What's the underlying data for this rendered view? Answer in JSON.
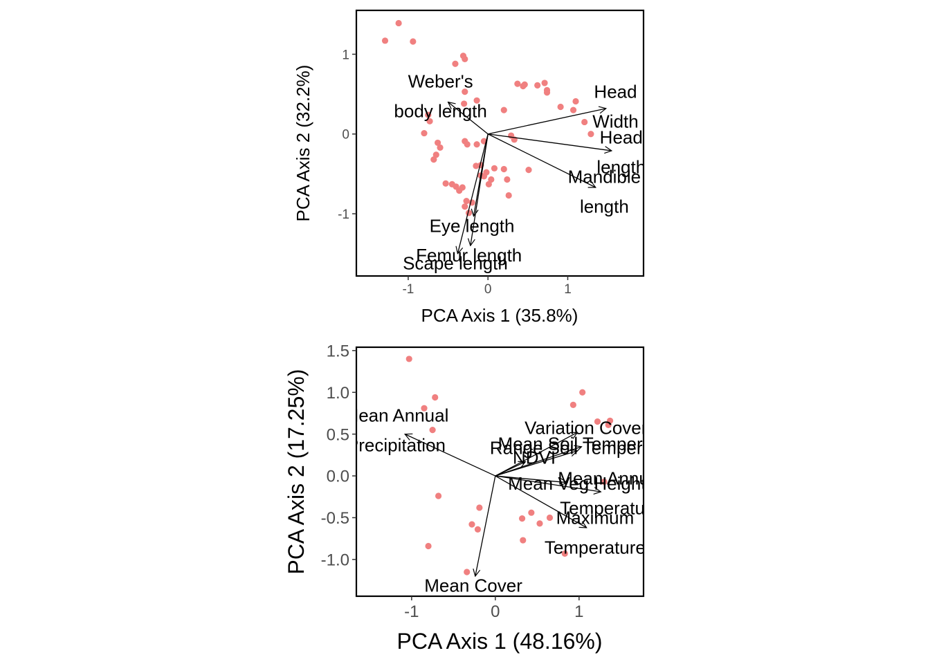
{
  "colors": {
    "point": "#F08080",
    "arrow": "#000000",
    "frame": "#000000",
    "tick_label": "#4D4D4D",
    "background": "#FFFFFF"
  },
  "chart_data": [
    {
      "type": "scatter",
      "subtype": "pca-biplot",
      "title": "",
      "xlabel": "PCA Axis 1 (35.8%)",
      "ylabel": "PCA Axis 2 (32.2%)",
      "xlim": [
        -1.65,
        1.95
      ],
      "ylim": [
        -1.78,
        1.55
      ],
      "xticks": [
        -1,
        0,
        1
      ],
      "yticks": [
        -1,
        0,
        1
      ],
      "xtick_labels": [
        "-1",
        "0",
        "1"
      ],
      "ytick_labels": [
        "-1",
        "0",
        "1"
      ],
      "grid": false,
      "legend": "none",
      "points": [
        [
          -1.12,
          1.39
        ],
        [
          -1.29,
          1.17
        ],
        [
          -0.94,
          1.16
        ],
        [
          -0.31,
          0.98
        ],
        [
          -0.29,
          0.94
        ],
        [
          -0.41,
          0.88
        ],
        [
          0.37,
          0.63
        ],
        [
          0.44,
          0.6
        ],
        [
          0.46,
          0.62
        ],
        [
          0.71,
          0.64
        ],
        [
          0.62,
          0.61
        ],
        [
          0.74,
          0.55
        ],
        [
          0.74,
          0.52
        ],
        [
          1.1,
          0.41
        ],
        [
          0.91,
          0.34
        ],
        [
          1.07,
          0.3
        ],
        [
          1.21,
          0.15
        ],
        [
          1.29,
          0.0
        ],
        [
          -0.29,
          0.53
        ],
        [
          -0.14,
          0.42
        ],
        [
          -0.3,
          0.38
        ],
        [
          0.2,
          0.3
        ],
        [
          -0.75,
          0.24
        ],
        [
          -0.73,
          0.16
        ],
        [
          -0.8,
          0.01
        ],
        [
          -0.63,
          -0.11
        ],
        [
          -0.6,
          -0.17
        ],
        [
          -0.29,
          -0.09
        ],
        [
          -0.26,
          -0.13
        ],
        [
          -0.14,
          -0.13
        ],
        [
          -0.05,
          -0.09
        ],
        [
          -0.65,
          -0.26
        ],
        [
          -0.68,
          -0.32
        ],
        [
          0.29,
          -0.02
        ],
        [
          0.33,
          -0.07
        ],
        [
          0.51,
          -0.45
        ],
        [
          -0.15,
          -0.4
        ],
        [
          -0.09,
          -0.39
        ],
        [
          0.08,
          -0.43
        ],
        [
          0.2,
          -0.44
        ],
        [
          -0.09,
          -0.52
        ],
        [
          -0.02,
          -0.48
        ],
        [
          -0.05,
          -0.53
        ],
        [
          0.04,
          -0.57
        ],
        [
          0.01,
          -0.63
        ],
        [
          0.24,
          -0.57
        ],
        [
          -0.53,
          -0.62
        ],
        [
          -0.45,
          -0.63
        ],
        [
          -0.4,
          -0.66
        ],
        [
          -0.36,
          -0.71
        ],
        [
          -0.32,
          -0.67
        ],
        [
          0.26,
          -0.77
        ],
        [
          -0.27,
          -0.84
        ],
        [
          -0.29,
          -0.91
        ],
        [
          -0.2,
          -0.86
        ],
        [
          -0.24,
          -0.99
        ]
      ],
      "arrows": [
        {
          "x": -0.5,
          "y": 0.4,
          "label": "Weber's\nbody length"
        },
        {
          "x": 1.48,
          "y": 0.32,
          "label": "Head\nWidth"
        },
        {
          "x": 1.55,
          "y": -0.21,
          "label": "Head\nlength"
        },
        {
          "x": 1.35,
          "y": -0.67,
          "label": "Mandible\nlength"
        },
        {
          "x": -0.18,
          "y": -1.03,
          "label": "Eye length"
        },
        {
          "x": -0.22,
          "y": -1.4,
          "label": "Femur length"
        },
        {
          "x": -0.38,
          "y": -1.5,
          "label": "Scape length"
        }
      ]
    },
    {
      "type": "scatter",
      "subtype": "pca-biplot",
      "title": "",
      "xlabel": "PCA Axis 1 (48.16%)",
      "ylabel": "PCA Axis 2 (17.25%)",
      "xlim": [
        -1.66,
        1.77
      ],
      "ylim": [
        -1.44,
        1.54
      ],
      "xticks": [
        -1,
        0,
        1
      ],
      "yticks": [
        -1.0,
        -0.5,
        0.0,
        0.5,
        1.0,
        1.5
      ],
      "xtick_labels": [
        "-1",
        "0",
        "1"
      ],
      "ytick_labels": [
        "-1.0",
        "-0.5",
        "0.0",
        "0.5",
        "1.0",
        "1.5"
      ],
      "grid": false,
      "legend": "none",
      "points": [
        [
          -1.03,
          1.4
        ],
        [
          -0.72,
          0.94
        ],
        [
          -0.85,
          0.81
        ],
        [
          -0.75,
          0.55
        ],
        [
          1.04,
          1.0
        ],
        [
          0.93,
          0.85
        ],
        [
          1.37,
          0.66
        ],
        [
          1.22,
          0.65
        ],
        [
          1.35,
          0.61
        ],
        [
          -0.68,
          -0.24
        ],
        [
          -0.19,
          -0.38
        ],
        [
          -0.28,
          -0.58
        ],
        [
          -0.21,
          -0.64
        ],
        [
          -0.8,
          -0.84
        ],
        [
          -0.34,
          -1.15
        ],
        [
          0.43,
          -0.44
        ],
        [
          0.32,
          -0.51
        ],
        [
          0.65,
          -0.5
        ],
        [
          0.53,
          -0.57
        ],
        [
          0.33,
          -0.77
        ],
        [
          0.83,
          -0.93
        ],
        [
          1.3,
          -0.07
        ]
      ],
      "arrows": [
        {
          "x": -1.08,
          "y": 0.5,
          "label": "Mean Annual\nPrecipitation"
        },
        {
          "x": 0.98,
          "y": 0.52,
          "label": "Variation Cover"
        },
        {
          "x": 1.03,
          "y": 0.35,
          "label": "Mean Soil Temperature"
        },
        {
          "x": 0.98,
          "y": 0.3,
          "label": "Range Soil Temperature"
        },
        {
          "x": 0.36,
          "y": 0.17,
          "label": "NDVI"
        },
        {
          "x": 0.86,
          "y": -0.08,
          "label": "Mean Veg Height"
        },
        {
          "x": 1.26,
          "y": -0.19,
          "label": "Mean Annual\nTemperature"
        },
        {
          "x": 1.09,
          "y": -0.62,
          "label": "Maximum\nTemperature"
        },
        {
          "x": -0.24,
          "y": -1.2,
          "label": "Mean Cover"
        }
      ]
    }
  ]
}
